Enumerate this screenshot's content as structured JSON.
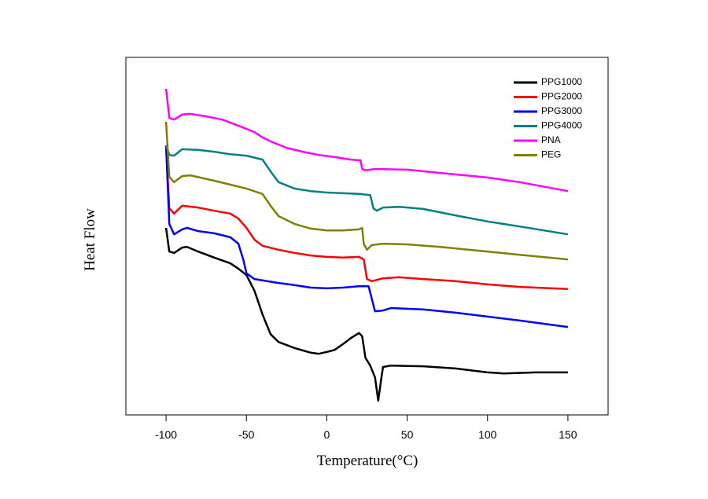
{
  "chart_data": {
    "type": "line",
    "x_label": "Temperature(°C)",
    "y_label": "Heat Flow",
    "xlim": [
      -125,
      175
    ],
    "xticks": [
      -100,
      -50,
      0,
      50,
      100,
      150
    ],
    "ylim": [
      0,
      100
    ],
    "legend": "upper right",
    "grid": false,
    "series": [
      {
        "name": "PPG1000",
        "color": "#000000",
        "x": [
          -100,
          -98,
          -95,
          -90,
          -87,
          -80,
          -70,
          -60,
          -55,
          -50,
          -45,
          -40,
          -35,
          -30,
          -20,
          -10,
          -5,
          0,
          5,
          10,
          15,
          20,
          22,
          24,
          27,
          30,
          32,
          34,
          35,
          40,
          60,
          80,
          100,
          110,
          130,
          150
        ],
        "values": [
          52.3,
          45.7,
          45.3,
          46.8,
          47.0,
          45.7,
          44.0,
          42.4,
          40.9,
          39.1,
          34.7,
          28.1,
          22.6,
          20.4,
          18.7,
          17.4,
          17.1,
          17.6,
          18.2,
          19.8,
          21.5,
          22.9,
          22.0,
          16.0,
          13.8,
          10.5,
          4.0,
          10.5,
          13.4,
          13.8,
          13.6,
          13.0,
          11.9,
          11.6,
          11.9,
          11.9
        ]
      },
      {
        "name": "PPG2000",
        "color": "#ff0000",
        "x": [
          -100,
          -98,
          -95,
          -90,
          -80,
          -70,
          -60,
          -55,
          -50,
          -45,
          -40,
          -30,
          -20,
          -10,
          0,
          10,
          20,
          23,
          25,
          28,
          35,
          45,
          60,
          80,
          100,
          120,
          150
        ],
        "values": [
          75.4,
          57.8,
          56.3,
          58.5,
          58.0,
          57.1,
          56.3,
          54.9,
          52.3,
          49.0,
          47.3,
          46.2,
          45.3,
          44.6,
          44.2,
          44.0,
          44.2,
          43.5,
          38.0,
          37.4,
          38.2,
          38.5,
          38.0,
          37.4,
          36.5,
          35.8,
          35.2
        ]
      },
      {
        "name": "PPG3000",
        "color": "#0000ff",
        "x": [
          -100,
          -98,
          -95,
          -90,
          -87,
          -80,
          -70,
          -60,
          -55,
          -52,
          -50,
          -45,
          -30,
          -20,
          -10,
          0,
          10,
          20,
          26,
          28,
          30,
          35,
          40,
          60,
          80,
          100,
          120,
          150
        ],
        "values": [
          75.4,
          53.4,
          50.5,
          51.9,
          52.3,
          51.4,
          50.8,
          49.7,
          47.9,
          43.5,
          39.6,
          38.0,
          36.9,
          36.3,
          35.6,
          35.4,
          35.6,
          36.0,
          36.0,
          32.5,
          29.0,
          29.2,
          29.9,
          29.5,
          28.6,
          27.5,
          26.4,
          24.6
        ]
      },
      {
        "name": "PPG4000",
        "color": "#008080",
        "x": [
          -100,
          -98,
          -95,
          -90,
          -80,
          -70,
          -60,
          -50,
          -40,
          -35,
          -30,
          -20,
          -10,
          0,
          10,
          20,
          27,
          29,
          31,
          35,
          45,
          60,
          80,
          100,
          120,
          150
        ],
        "values": [
          75.4,
          72.7,
          72.5,
          74.3,
          74.1,
          73.6,
          72.9,
          72.5,
          71.4,
          68.1,
          65.1,
          63.3,
          62.6,
          62.2,
          62.0,
          61.8,
          61.5,
          57.8,
          57.1,
          58.0,
          58.2,
          57.6,
          55.8,
          54.1,
          52.7,
          50.5
        ]
      },
      {
        "name": "PNA",
        "color": "#ff00ff",
        "x": [
          -100,
          -98,
          -95,
          -90,
          -85,
          -75,
          -65,
          -55,
          -45,
          -40,
          -35,
          -25,
          -15,
          -5,
          5,
          15,
          21,
          22,
          24,
          30,
          50,
          70,
          100,
          120,
          150
        ],
        "values": [
          91.2,
          83.1,
          82.6,
          84.0,
          84.2,
          83.5,
          82.6,
          80.9,
          79.1,
          77.6,
          76.5,
          74.7,
          73.6,
          72.7,
          72.1,
          71.4,
          71.2,
          68.8,
          68.4,
          68.8,
          68.6,
          67.7,
          66.4,
          65.1,
          62.6
        ]
      },
      {
        "name": "PEG",
        "color": "#808000",
        "x": [
          -100,
          -98,
          -95,
          -90,
          -85,
          -70,
          -60,
          -50,
          -40,
          -35,
          -30,
          -20,
          -10,
          0,
          10,
          20,
          22,
          23,
          25,
          28,
          35,
          50,
          70,
          100,
          120,
          150
        ],
        "values": [
          82.0,
          66.6,
          65.1,
          66.8,
          67.0,
          65.5,
          64.4,
          63.3,
          61.8,
          58.5,
          55.6,
          53.4,
          52.1,
          51.6,
          51.6,
          51.9,
          52.3,
          47.9,
          46.2,
          47.5,
          47.9,
          47.7,
          47.0,
          45.7,
          44.8,
          43.5
        ]
      }
    ]
  }
}
